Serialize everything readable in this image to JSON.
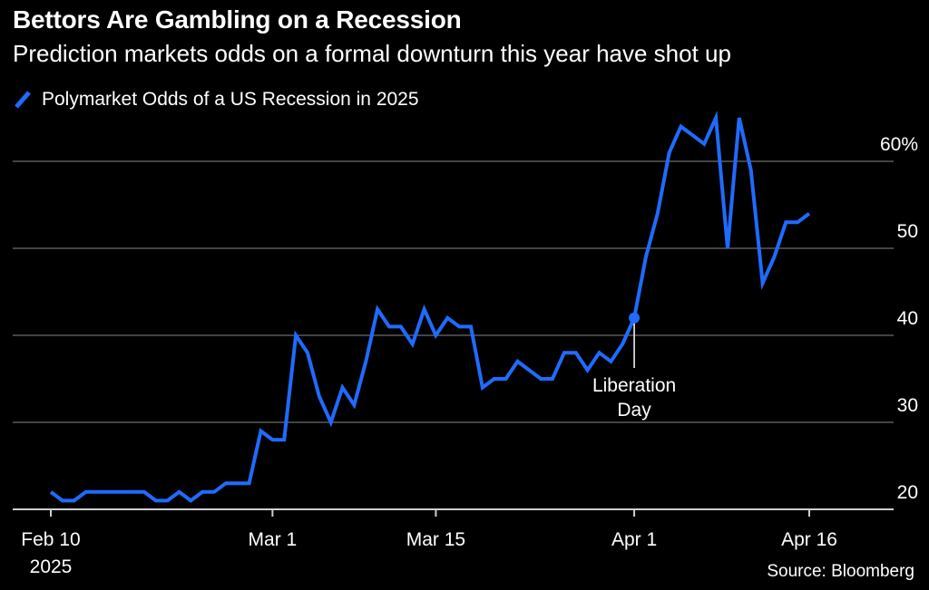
{
  "title": "Bettors Are Gambling on a Recession",
  "subtitle": "Prediction markets odds on a formal downturn this year have shot up",
  "source": "Source: Bloomberg",
  "colors": {
    "series": "#1f6bff",
    "grid": "#5a5a5a",
    "background": "#000000",
    "text": "#ffffff"
  },
  "chart_data": {
    "type": "line",
    "series": [
      {
        "name": "Polymarket Odds of a US Recession in 2025",
        "x": [
          "2025-02-10",
          "2025-02-11",
          "2025-02-12",
          "2025-02-13",
          "2025-02-14",
          "2025-02-15",
          "2025-02-16",
          "2025-02-17",
          "2025-02-18",
          "2025-02-19",
          "2025-02-20",
          "2025-02-21",
          "2025-02-22",
          "2025-02-23",
          "2025-02-24",
          "2025-02-25",
          "2025-02-26",
          "2025-02-27",
          "2025-02-28",
          "2025-03-01",
          "2025-03-02",
          "2025-03-03",
          "2025-03-04",
          "2025-03-05",
          "2025-03-06",
          "2025-03-07",
          "2025-03-08",
          "2025-03-09",
          "2025-03-10",
          "2025-03-11",
          "2025-03-12",
          "2025-03-13",
          "2025-03-14",
          "2025-03-15",
          "2025-03-16",
          "2025-03-17",
          "2025-03-18",
          "2025-03-19",
          "2025-03-20",
          "2025-03-21",
          "2025-03-22",
          "2025-03-23",
          "2025-03-24",
          "2025-03-25",
          "2025-03-26",
          "2025-03-27",
          "2025-03-28",
          "2025-03-29",
          "2025-03-30",
          "2025-03-31",
          "2025-04-01",
          "2025-04-02",
          "2025-04-03",
          "2025-04-04",
          "2025-04-05",
          "2025-04-06",
          "2025-04-07",
          "2025-04-08",
          "2025-04-09",
          "2025-04-10",
          "2025-04-11",
          "2025-04-12",
          "2025-04-13",
          "2025-04-14",
          "2025-04-15",
          "2025-04-16"
        ],
        "values": [
          22,
          21,
          21,
          22,
          22,
          22,
          22,
          22,
          22,
          21,
          21,
          22,
          21,
          22,
          22,
          23,
          23,
          23,
          29,
          28,
          28,
          40,
          38,
          33,
          30,
          34,
          32,
          37,
          43,
          41,
          41,
          39,
          43,
          40,
          42,
          41,
          41,
          34,
          35,
          35,
          37,
          36,
          35,
          35,
          38,
          38,
          36,
          38,
          37,
          39,
          42,
          49,
          54,
          61,
          64,
          63,
          62,
          65,
          50,
          65,
          59,
          46,
          49,
          53,
          53,
          54
        ]
      }
    ],
    "x_ticks": [
      {
        "date": "2025-02-10",
        "label": "Feb 10",
        "label2": "2025"
      },
      {
        "date": "2025-03-01",
        "label": "Mar 1"
      },
      {
        "date": "2025-03-15",
        "label": "Mar 15"
      },
      {
        "date": "2025-04-01",
        "label": "Apr 1"
      },
      {
        "date": "2025-04-16",
        "label": "Apr 16"
      }
    ],
    "y_ticks": [
      {
        "value": 20,
        "label": "20"
      },
      {
        "value": 30,
        "label": "30"
      },
      {
        "value": 40,
        "label": "40"
      },
      {
        "value": 50,
        "label": "50"
      },
      {
        "value": 60,
        "label": "60%"
      }
    ],
    "ylim": [
      20,
      60
    ],
    "grid": "horizontal",
    "legend_position": "top-left",
    "annotation": {
      "date": "2025-04-01",
      "value": 42,
      "label_lines": [
        "Liberation",
        "Day"
      ]
    }
  }
}
